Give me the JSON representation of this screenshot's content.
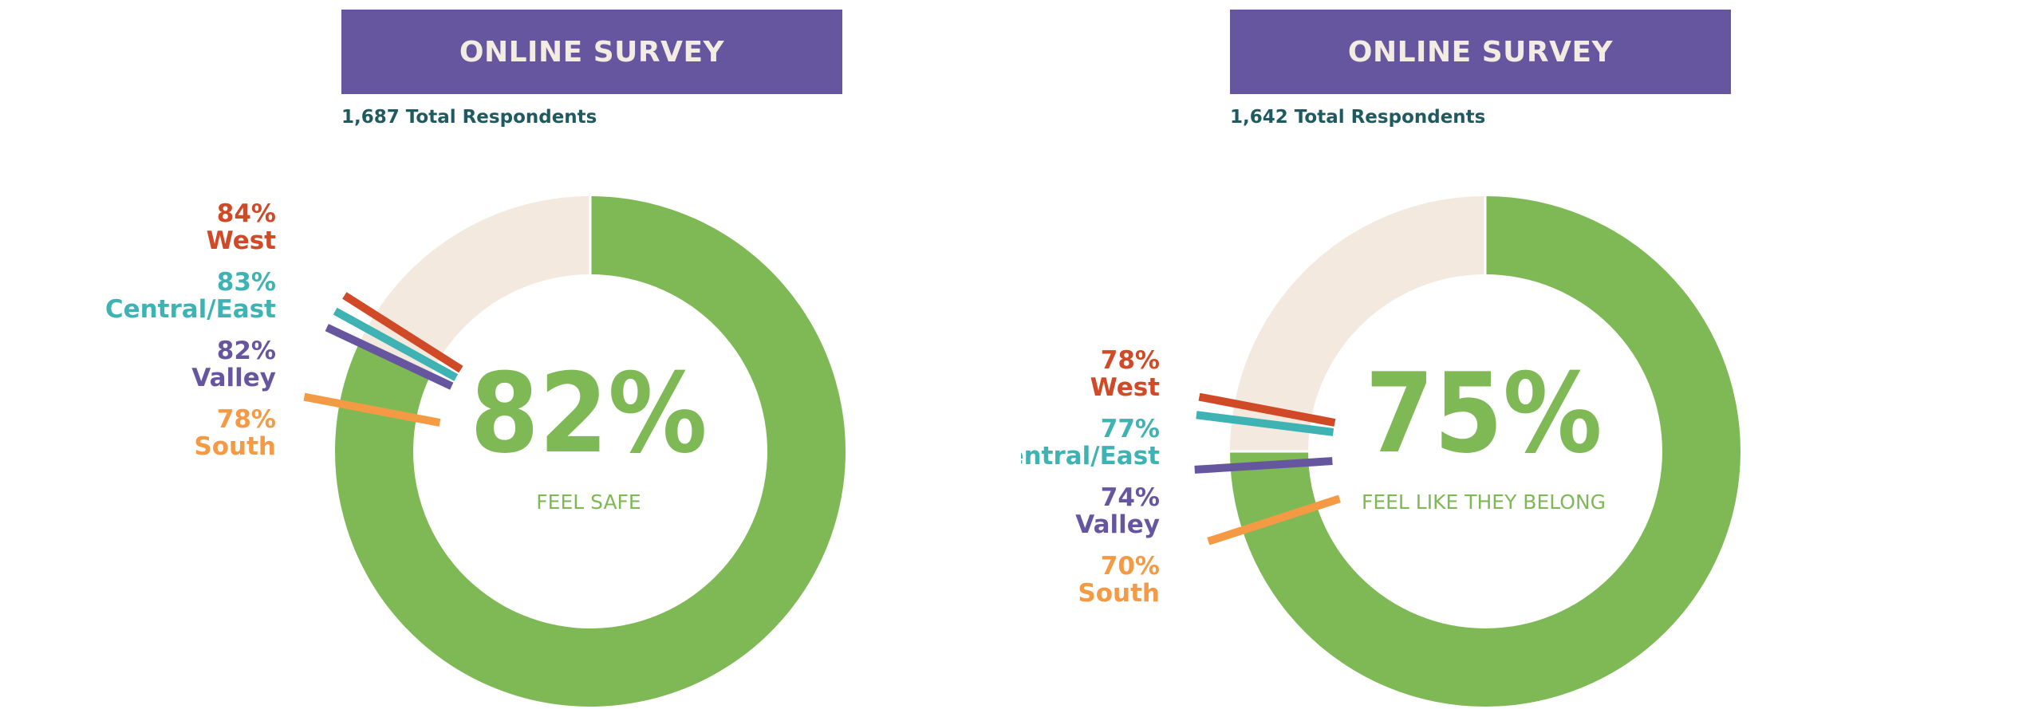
{
  "colors": {
    "banner": "#6656a0",
    "banner_text": "#f3ece2",
    "positive": "#7eb955",
    "remainder": "#f3e9de",
    "West": "#d14a27",
    "Central/East": "#3fb3b4",
    "Valley": "#6656a0",
    "South": "#f59a44"
  },
  "chart_data": [
    {
      "type": "pie",
      "title": "ONLINE SURVEY",
      "subtitle": "1,687 Total Respondents",
      "center_value": "82%",
      "center_label": "FEEL SAFE",
      "value": 82,
      "regions": [
        {
          "name": "West",
          "value": 84,
          "label_value": "84%"
        },
        {
          "name": "Central/East",
          "value": 83,
          "label_value": "83%"
        },
        {
          "name": "Valley",
          "value": 82,
          "label_value": "82%"
        },
        {
          "name": "South",
          "value": 78,
          "label_value": "78%"
        }
      ]
    },
    {
      "type": "pie",
      "title": "ONLINE SURVEY",
      "subtitle": "1,642 Total Respondents",
      "center_value": "75%",
      "center_label": "FEEL LIKE THEY BELONG",
      "value": 75,
      "regions": [
        {
          "name": "West",
          "value": 78,
          "label_value": "78%"
        },
        {
          "name": "Central/East",
          "value": 77,
          "label_value": "77%"
        },
        {
          "name": "Valley",
          "value": 74,
          "label_value": "74%"
        },
        {
          "name": "South",
          "value": 70,
          "label_value": "70%"
        }
      ]
    }
  ]
}
